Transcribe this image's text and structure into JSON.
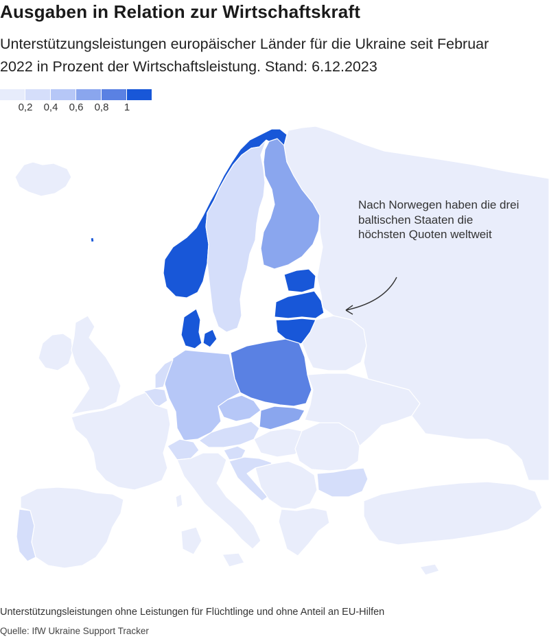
{
  "title": "Ausgaben in Relation zur Wirtschaftskraft",
  "subtitle": "Unterstützungsleistungen europäischer Länder für die Ukraine seit Februar 2022 in Prozent der Wirtschaftsleistung. Stand: 6.12.2023",
  "legend": {
    "colors": [
      "#e7ecfb",
      "#d5defa",
      "#b6c7f7",
      "#8aa6ee",
      "#5a81e3",
      "#1857d8"
    ],
    "tick_labels": [
      "0,2",
      "0,4",
      "0,6",
      "0,8",
      "1"
    ]
  },
  "annotation": "Nach Norwegen haben die drei baltischen Staaten die höchsten Quoten weltweit",
  "footnote": "Unterstützungsleistungen ohne Leistungen für Flüchtlinge und ohne Anteil an EU-Hilfen",
  "source": "Quelle: IfW Ukraine Support Tracker",
  "colors": {
    "no_data": "#e9edfb",
    "level_1": "#e7ecfb",
    "level_2": "#d5defa",
    "level_3": "#b6c7f7",
    "level_4": "#8aa6ee",
    "level_5": "#5a81e3",
    "level_6": "#1857d8"
  }
}
